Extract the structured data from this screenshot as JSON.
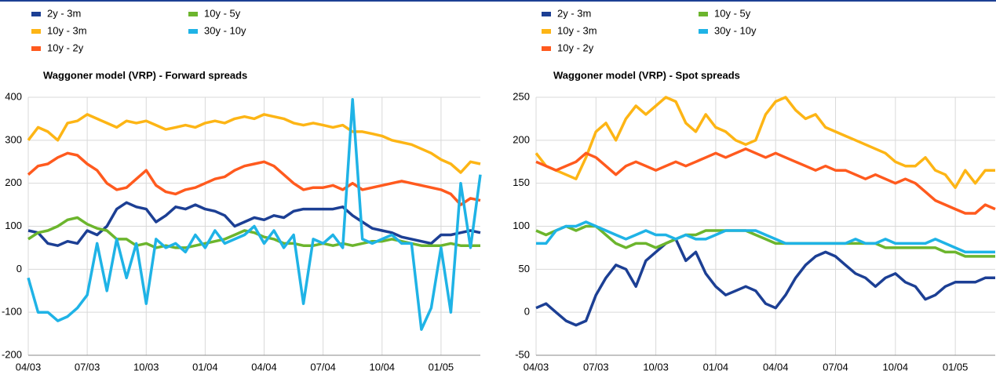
{
  "chart_data": [
    {
      "type": "line",
      "title": "Waggoner model (VRP) - Forward spreads",
      "categories": [
        "04/03",
        null,
        null,
        null,
        null,
        null,
        "07/03",
        null,
        null,
        null,
        null,
        null,
        "10/03",
        null,
        null,
        null,
        null,
        null,
        "01/04",
        null,
        null,
        null,
        null,
        null,
        "04/04",
        null,
        null,
        null,
        null,
        null,
        "07/04",
        null,
        null,
        null,
        null,
        null,
        "10/04",
        null,
        null,
        null,
        null,
        null,
        "01/05",
        null,
        null,
        null,
        null
      ],
      "ylim": [
        -200,
        400
      ],
      "yticks": [
        -200,
        -100,
        0,
        100,
        200,
        300,
        400
      ],
      "grid": true,
      "legend": "top-left",
      "series": [
        {
          "name": "2y - 3m",
          "color": "#1c3f94",
          "values": [
            90,
            85,
            60,
            55,
            65,
            60,
            90,
            80,
            100,
            140,
            155,
            145,
            140,
            110,
            125,
            145,
            140,
            150,
            140,
            135,
            125,
            100,
            110,
            120,
            115,
            125,
            120,
            135,
            140,
            140,
            140,
            140,
            145,
            125,
            110,
            95,
            90,
            85,
            75,
            70,
            65,
            60,
            80,
            80,
            85,
            90,
            85
          ]
        },
        {
          "name": "10y - 3m",
          "color": "#fdb515",
          "values": [
            300,
            330,
            320,
            300,
            340,
            345,
            360,
            350,
            340,
            330,
            345,
            340,
            345,
            335,
            325,
            330,
            335,
            330,
            340,
            345,
            340,
            350,
            355,
            350,
            360,
            355,
            350,
            340,
            335,
            340,
            335,
            330,
            335,
            320,
            320,
            315,
            310,
            300,
            295,
            290,
            280,
            270,
            255,
            245,
            225,
            250,
            245
          ]
        },
        {
          "name": "10y - 2y",
          "color": "#ff5a1e",
          "values": [
            220,
            240,
            245,
            260,
            270,
            265,
            245,
            230,
            200,
            185,
            190,
            210,
            230,
            195,
            180,
            175,
            185,
            190,
            200,
            210,
            215,
            230,
            240,
            245,
            250,
            240,
            220,
            200,
            185,
            190,
            190,
            195,
            185,
            200,
            185,
            190,
            195,
            200,
            205,
            200,
            195,
            190,
            185,
            175,
            150,
            165,
            160
          ]
        },
        {
          "name": "10y - 5y",
          "color": "#6cb52d",
          "values": [
            70,
            85,
            90,
            100,
            115,
            120,
            105,
            95,
            90,
            70,
            70,
            55,
            60,
            50,
            55,
            50,
            50,
            55,
            60,
            65,
            70,
            80,
            90,
            85,
            75,
            70,
            60,
            60,
            55,
            55,
            60,
            55,
            60,
            55,
            60,
            65,
            65,
            70,
            65,
            60,
            55,
            55,
            55,
            60,
            55,
            55,
            55
          ]
        },
        {
          "name": "30y - 10y",
          "color": "#1fb3e6",
          "values": [
            -20,
            -100,
            -100,
            -120,
            -110,
            -90,
            -60,
            60,
            -50,
            70,
            -20,
            60,
            -80,
            70,
            50,
            60,
            40,
            80,
            50,
            90,
            60,
            70,
            80,
            100,
            60,
            90,
            50,
            80,
            -80,
            70,
            60,
            80,
            50,
            395,
            70,
            60,
            70,
            80,
            60,
            60,
            -140,
            -90,
            50,
            -100,
            200,
            50,
            220
          ]
        }
      ]
    },
    {
      "type": "line",
      "title": "Waggoner model (VRP) - Spot spreads",
      "categories": [
        "04/03",
        null,
        null,
        null,
        null,
        null,
        "07/03",
        null,
        null,
        null,
        null,
        null,
        "10/03",
        null,
        null,
        null,
        null,
        null,
        "01/04",
        null,
        null,
        null,
        null,
        null,
        "04/04",
        null,
        null,
        null,
        null,
        null,
        "07/04",
        null,
        null,
        null,
        null,
        null,
        "10/04",
        null,
        null,
        null,
        null,
        null,
        "01/05",
        null,
        null,
        null,
        null
      ],
      "ylim": [
        -50,
        250
      ],
      "yticks": [
        -50,
        0,
        50,
        100,
        150,
        200,
        250
      ],
      "grid": true,
      "legend": "top-left",
      "series": [
        {
          "name": "2y - 3m",
          "color": "#1c3f94",
          "values": [
            5,
            10,
            0,
            -10,
            -15,
            -10,
            20,
            40,
            55,
            50,
            30,
            60,
            70,
            80,
            85,
            60,
            70,
            45,
            30,
            20,
            25,
            30,
            25,
            10,
            5,
            20,
            40,
            55,
            65,
            70,
            65,
            55,
            45,
            40,
            30,
            40,
            45,
            35,
            30,
            15,
            20,
            30,
            35,
            35,
            35,
            40,
            40
          ]
        },
        {
          "name": "10y - 3m",
          "color": "#fdb515",
          "values": [
            185,
            170,
            165,
            160,
            155,
            180,
            210,
            220,
            200,
            225,
            240,
            230,
            240,
            250,
            245,
            220,
            210,
            230,
            215,
            210,
            200,
            195,
            200,
            230,
            245,
            250,
            235,
            225,
            230,
            215,
            210,
            205,
            200,
            195,
            190,
            185,
            175,
            170,
            170,
            180,
            165,
            160,
            145,
            165,
            150,
            165,
            165
          ]
        },
        {
          "name": "10y - 2y",
          "color": "#ff5a1e",
          "values": [
            175,
            170,
            165,
            170,
            175,
            185,
            180,
            170,
            160,
            170,
            175,
            170,
            165,
            170,
            175,
            170,
            175,
            180,
            185,
            180,
            185,
            190,
            185,
            180,
            185,
            180,
            175,
            170,
            165,
            170,
            165,
            165,
            160,
            155,
            160,
            155,
            150,
            155,
            150,
            140,
            130,
            125,
            120,
            115,
            115,
            125,
            120
          ]
        },
        {
          "name": "10y - 5y",
          "color": "#6cb52d",
          "values": [
            95,
            90,
            95,
            100,
            95,
            100,
            100,
            90,
            80,
            75,
            80,
            80,
            75,
            80,
            85,
            90,
            90,
            95,
            95,
            95,
            95,
            95,
            90,
            85,
            80,
            80,
            80,
            80,
            80,
            80,
            80,
            80,
            80,
            80,
            80,
            75,
            75,
            75,
            75,
            75,
            75,
            70,
            70,
            65,
            65,
            65,
            65
          ]
        },
        {
          "name": "30y - 10y",
          "color": "#1fb3e6",
          "values": [
            80,
            80,
            95,
            100,
            100,
            105,
            100,
            95,
            90,
            85,
            90,
            95,
            90,
            90,
            85,
            90,
            85,
            85,
            90,
            95,
            95,
            95,
            95,
            90,
            85,
            80,
            80,
            80,
            80,
            80,
            80,
            80,
            85,
            80,
            80,
            85,
            80,
            80,
            80,
            80,
            85,
            80,
            75,
            70,
            70,
            70,
            70
          ]
        }
      ]
    }
  ]
}
